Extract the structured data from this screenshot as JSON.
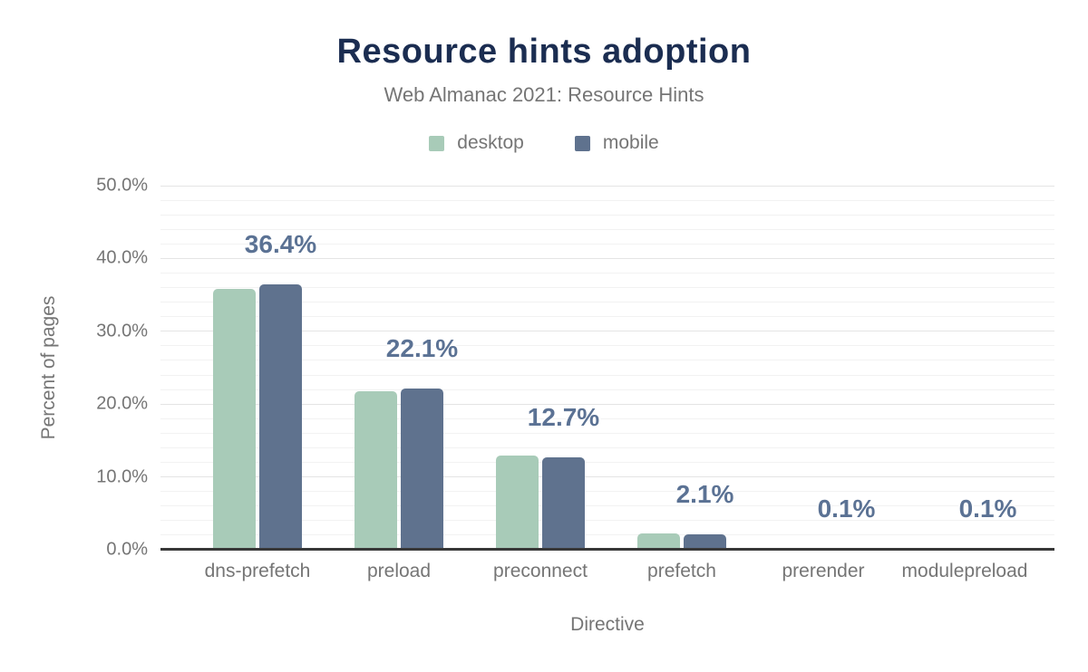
{
  "chart_data": {
    "type": "bar",
    "title": "Resource hints adoption",
    "subtitle": "Web Almanac 2021: Resource Hints",
    "xlabel": "Directive",
    "ylabel": "Percent of pages",
    "categories": [
      "dns-prefetch",
      "preload",
      "preconnect",
      "prefetch",
      "prerender",
      "modulepreload"
    ],
    "series": [
      {
        "name": "desktop",
        "color": "#a8cbb8",
        "values": [
          35.8,
          21.8,
          12.9,
          2.3,
          0.1,
          0.1
        ]
      },
      {
        "name": "mobile",
        "color": "#5f728e",
        "values": [
          36.4,
          22.1,
          12.7,
          2.1,
          0.1,
          0.1
        ]
      }
    ],
    "value_labels": {
      "annotated_series": "mobile",
      "texts": [
        "36.4%",
        "22.1%",
        "12.7%",
        "2.1%",
        "0.1%",
        "0.1%"
      ]
    },
    "y_axis": {
      "min": 0,
      "max": 50,
      "major_step": 10,
      "minor_step": 2,
      "tick_labels": [
        "0.0%",
        "10.0%",
        "20.0%",
        "30.0%",
        "40.0%",
        "50.0%"
      ]
    },
    "legend_position": "top",
    "grid": "on"
  },
  "colors": {
    "title": "#1b2d51",
    "muted_text": "#757575",
    "value_label_text": "#5b7294",
    "gridline_major": "#e4e4e4",
    "gridline_minor": "#f2f2f2",
    "axis_line": "#383838",
    "background": "#ffffff"
  }
}
